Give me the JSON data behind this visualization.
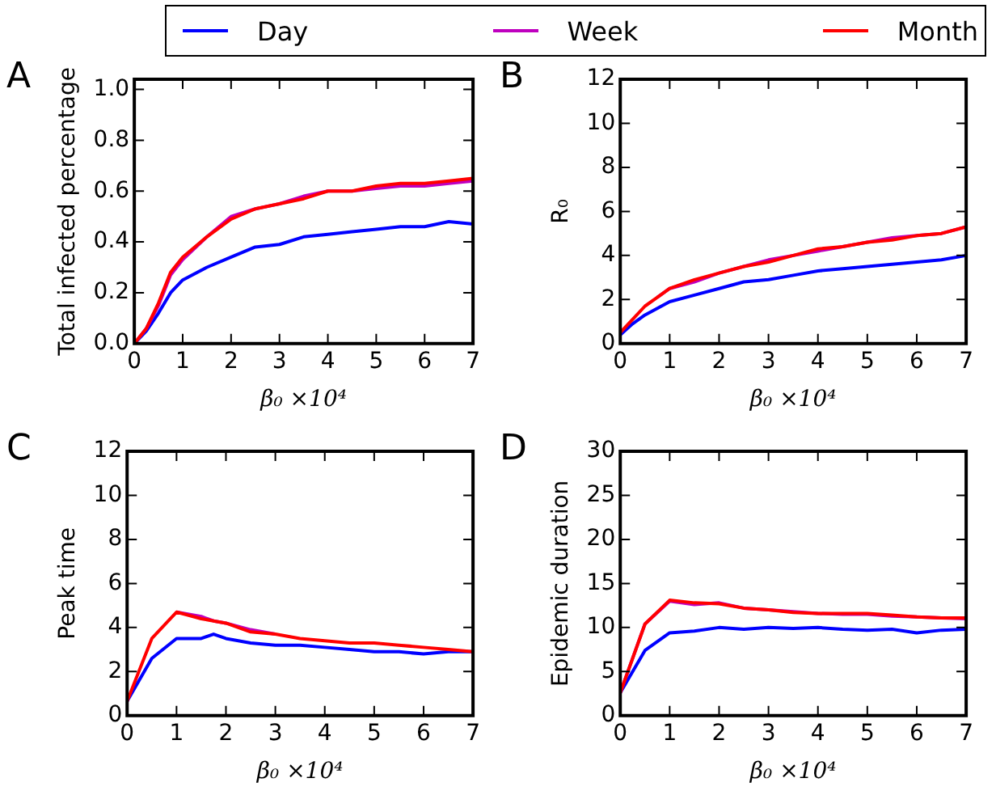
{
  "chart_data": [
    {
      "type": "line",
      "annotations": [
        "A"
      ],
      "ylabel": "Total infected percentage",
      "xlabel": "β₀ ×10⁴",
      "legend": "top",
      "xlim": [
        0,
        7
      ],
      "xticks": [
        0,
        1,
        2,
        3,
        4,
        5,
        6,
        7
      ],
      "ylim": [
        0,
        1.04
      ],
      "yticks": [
        {
          "value": 0,
          "label": "0.0"
        },
        {
          "value": 0.2,
          "label": "0.2"
        },
        {
          "value": 0.4,
          "label": "0.4"
        },
        {
          "value": 0.6,
          "label": "0.6"
        },
        {
          "value": 0.8,
          "label": "0.8"
        },
        {
          "value": 1,
          "label": "1.0"
        }
      ],
      "x": [
        0,
        0.25,
        0.5,
        0.75,
        1,
        1.5,
        2,
        2.5,
        3,
        3.5,
        4,
        4.5,
        5,
        5.5,
        6,
        6.5,
        7
      ],
      "series": [
        {
          "name": "Day",
          "color": "#0000ff",
          "values": [
            0,
            0.05,
            0.12,
            0.2,
            0.25,
            0.3,
            0.34,
            0.38,
            0.39,
            0.42,
            0.43,
            0.44,
            0.45,
            0.46,
            0.46,
            0.48,
            0.47
          ]
        },
        {
          "name": "Week",
          "color": "#bf00bf",
          "values": [
            0,
            0.06,
            0.15,
            0.27,
            0.33,
            0.42,
            0.5,
            0.53,
            0.55,
            0.58,
            0.6,
            0.6,
            0.61,
            0.62,
            0.62,
            0.63,
            0.64
          ]
        },
        {
          "name": "Month",
          "color": "#ff0000",
          "values": [
            0,
            0.06,
            0.16,
            0.28,
            0.34,
            0.42,
            0.49,
            0.53,
            0.55,
            0.57,
            0.6,
            0.6,
            0.62,
            0.63,
            0.63,
            0.64,
            0.65
          ]
        }
      ]
    },
    {
      "type": "line",
      "annotations": [
        "B"
      ],
      "ylabel": "R₀",
      "xlabel": "β₀ ×10⁴",
      "xlim": [
        0,
        7
      ],
      "xticks": [
        0,
        1,
        2,
        3,
        4,
        5,
        6,
        7
      ],
      "ylim": [
        0,
        12
      ],
      "yticks": [
        0,
        2,
        4,
        6,
        8,
        10,
        12
      ],
      "x": [
        0,
        0.25,
        0.5,
        0.75,
        1,
        1.5,
        2,
        2.5,
        3,
        3.5,
        4,
        4.5,
        5,
        5.5,
        6,
        6.5,
        7
      ],
      "series": [
        {
          "color": "#0000ff",
          "values": [
            0.4,
            0.9,
            1.3,
            1.6,
            1.9,
            2.2,
            2.5,
            2.8,
            2.9,
            3.1,
            3.3,
            3.4,
            3.5,
            3.6,
            3.7,
            3.8,
            4.0
          ]
        },
        {
          "color": "#bf00bf",
          "values": [
            null,
            null,
            null,
            2.1,
            2.5,
            2.8,
            3.2,
            3.5,
            3.8,
            4.0,
            4.2,
            4.4,
            4.6,
            4.8,
            4.9,
            5.0,
            5.3
          ]
        },
        {
          "color": "#ff0000",
          "values": [
            0.5,
            1.1,
            1.7,
            2.1,
            2.5,
            2.9,
            3.2,
            3.5,
            3.7,
            4.0,
            4.3,
            4.4,
            4.6,
            4.7,
            4.9,
            5.0,
            5.3
          ]
        }
      ]
    },
    {
      "type": "line",
      "annotations": [
        "C"
      ],
      "ylabel": "Peak time",
      "xlabel": "β₀ ×10⁴",
      "xlim": [
        0,
        7
      ],
      "xticks": [
        0,
        1,
        2,
        3,
        4,
        5,
        6,
        7
      ],
      "ylim": [
        0,
        12
      ],
      "yticks": [
        0,
        2,
        4,
        6,
        8,
        10,
        12
      ],
      "x": [
        0,
        0.5,
        1,
        1.5,
        1.75,
        2,
        2.5,
        3,
        3.5,
        4,
        4.5,
        5,
        5.5,
        6,
        6.5,
        7
      ],
      "series": [
        {
          "color": "#0000ff",
          "values": [
            0.65,
            2.6,
            3.5,
            3.5,
            3.7,
            3.5,
            3.3,
            3.2,
            3.2,
            3.1,
            3.0,
            2.9,
            2.9,
            2.8,
            2.9,
            2.9
          ]
        },
        {
          "color": "#bf00bf",
          "values": [
            null,
            null,
            4.7,
            4.5,
            4.3,
            4.2,
            3.9,
            3.7,
            null,
            null,
            null,
            null,
            null,
            null,
            null,
            null
          ]
        },
        {
          "color": "#ff0000",
          "values": [
            0.65,
            3.5,
            4.7,
            4.4,
            4.3,
            4.2,
            3.8,
            3.7,
            3.5,
            3.4,
            3.3,
            3.3,
            3.2,
            3.1,
            3.0,
            2.9
          ]
        }
      ]
    },
    {
      "type": "line",
      "annotations": [
        "D"
      ],
      "ylabel": "Epidemic duration",
      "xlabel": "β₀ ×10⁴",
      "xlim": [
        0,
        7
      ],
      "xticks": [
        0,
        1,
        2,
        3,
        4,
        5,
        6,
        7
      ],
      "ylim": [
        0,
        30
      ],
      "yticks": [
        0,
        5,
        10,
        15,
        20,
        25,
        30
      ],
      "x": [
        0,
        0.5,
        1,
        1.5,
        2,
        2.5,
        3,
        3.5,
        4,
        4.5,
        5,
        5.5,
        6,
        6.5,
        7
      ],
      "series": [
        {
          "color": "#0000ff",
          "values": [
            2.6,
            7.4,
            9.4,
            9.6,
            10.0,
            9.8,
            10.0,
            9.9,
            10.0,
            9.8,
            9.7,
            9.8,
            9.4,
            9.7,
            9.8
          ]
        },
        {
          "color": "#bf00bf",
          "values": [
            2.6,
            10.4,
            13.0,
            12.6,
            12.8,
            12.2,
            12.0,
            11.8,
            11.6,
            11.5,
            11.5,
            11.3,
            11.2,
            11.1,
            11.0
          ]
        },
        {
          "color": "#ff0000",
          "values": [
            2.6,
            10.4,
            13.1,
            12.8,
            12.7,
            12.2,
            12.0,
            11.7,
            11.6,
            11.6,
            11.6,
            11.4,
            11.2,
            11.1,
            11.1
          ]
        }
      ]
    }
  ]
}
